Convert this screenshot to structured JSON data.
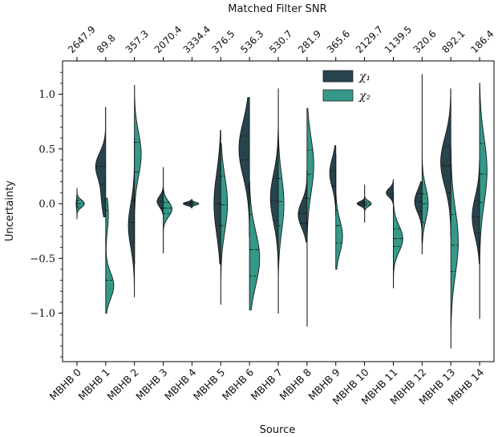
{
  "chart_data": {
    "type": "violin",
    "xlabel": "Source",
    "ylabel": "Uncertainty",
    "top_xlabel": "Matched Filter SNR",
    "ylim": [
      -1.45,
      1.3
    ],
    "yticks": [
      -1.0,
      -0.5,
      0.0,
      0.5,
      1.0
    ],
    "ytick_labels": [
      "−1.0",
      "−0.5",
      "0.0",
      "0.5",
      "1.0"
    ],
    "categories": [
      "MBHB 0",
      "MBHB 1",
      "MBHB 2",
      "MBHB 3",
      "MBHB 4",
      "MBHB 5",
      "MBHB 6",
      "MBHB 7",
      "MBHB 8",
      "MBHB 9",
      "MBHB 10",
      "MBHB 11",
      "MBHB 12",
      "MBHB 13",
      "MBHB 14"
    ],
    "snr": [
      "2647.9",
      "89.8",
      "357.3",
      "2070.4",
      "3334.4",
      "376.5",
      "536.3",
      "530.7",
      "281.9",
      "365.6",
      "2129.7",
      "1139.5",
      "320.6",
      "892.1",
      "186.4"
    ],
    "legend_position": "top-center",
    "colors": {
      "chi1": "#27444d",
      "chi2": "#35998a"
    },
    "series": [
      {
        "name": "χ₁",
        "violins": [
          {
            "min": -0.14,
            "max": 0.14,
            "q1": -0.03,
            "median": 0.0,
            "q3": 0.03,
            "peaks": [
              [
                0.0,
                0.035,
                0.06
              ]
            ]
          },
          {
            "min": -0.12,
            "max": 0.88,
            "q1": 0.03,
            "median": 0.18,
            "q3": 0.34,
            "peaks": [
              [
                0.35,
                0.12,
                0.7
              ],
              [
                0.05,
                0.15,
                0.3
              ]
            ]
          },
          {
            "min": -0.85,
            "max": 0.6,
            "q1": -0.35,
            "median": -0.17,
            "q3": 0.03,
            "peaks": [
              [
                -0.2,
                0.2,
                0.45
              ]
            ]
          },
          {
            "min": -0.1,
            "max": 0.15,
            "q1": -0.04,
            "median": 0.02,
            "q3": 0.06,
            "peaks": [
              [
                0.02,
                0.05,
                0.45
              ]
            ]
          },
          {
            "min": -0.04,
            "max": 0.04,
            "q1": -0.01,
            "median": 0.0,
            "q3": 0.01,
            "peaks": [
              [
                0.0,
                0.015,
                0.65
              ]
            ]
          },
          {
            "min": -0.55,
            "max": 0.67,
            "q1": -0.2,
            "median": 0.0,
            "q3": 0.25,
            "peaks": [
              [
                0.0,
                0.28,
                0.5
              ]
            ]
          },
          {
            "min": -0.3,
            "max": 0.97,
            "q1": 0.15,
            "median": 0.4,
            "q3": 0.62,
            "peaks": [
              [
                0.5,
                0.25,
                0.78
              ]
            ]
          },
          {
            "min": -0.6,
            "max": 0.67,
            "q1": -0.15,
            "median": 0.03,
            "q3": 0.23,
            "peaks": [
              [
                0.05,
                0.22,
                0.58
              ]
            ]
          },
          {
            "min": -0.35,
            "max": 0.3,
            "q1": -0.18,
            "median": -0.09,
            "q3": 0.05,
            "peaks": [
              [
                -0.1,
                0.12,
                0.65
              ]
            ]
          },
          {
            "min": -0.1,
            "max": 0.53,
            "q1": 0.05,
            "median": 0.16,
            "q3": 0.3,
            "peaks": [
              [
                0.28,
                0.13,
                0.45
              ]
            ]
          },
          {
            "min": -0.05,
            "max": 0.05,
            "q1": -0.015,
            "median": 0.0,
            "q3": 0.015,
            "peaks": [
              [
                0.0,
                0.02,
                0.55
              ]
            ]
          },
          {
            "min": 0.0,
            "max": 0.22,
            "q1": 0.06,
            "median": 0.09,
            "q3": 0.13,
            "peaks": [
              [
                0.1,
                0.04,
                0.52
              ]
            ]
          },
          {
            "min": -0.35,
            "max": 0.2,
            "q1": -0.07,
            "median": 0.02,
            "q3": 0.09,
            "peaks": [
              [
                0.02,
                0.1,
                0.55
              ]
            ]
          },
          {
            "min": -0.3,
            "max": 1.05,
            "q1": 0.1,
            "median": 0.35,
            "q3": 0.52,
            "peaks": [
              [
                0.38,
                0.22,
                0.75
              ]
            ]
          },
          {
            "min": -0.55,
            "max": 0.4,
            "q1": -0.27,
            "median": -0.12,
            "q3": 0.03,
            "peaks": [
              [
                -0.12,
                0.18,
                0.55
              ]
            ]
          }
        ]
      },
      {
        "name": "χ₂",
        "violins": [
          {
            "min": -0.12,
            "max": 0.12,
            "q1": -0.03,
            "median": 0.0,
            "q3": 0.03,
            "peaks": [
              [
                0.0,
                0.035,
                0.55
              ]
            ]
          },
          {
            "min": -1.0,
            "max": 0.05,
            "q1": -0.7,
            "median": -0.42,
            "q3": -0.06,
            "peaks": [
              [
                -0.75,
                0.12,
                0.6
              ],
              [
                -0.1,
                0.15,
                0.2
              ]
            ]
          },
          {
            "min": -0.55,
            "max": 1.08,
            "q1": 0.0,
            "median": 0.29,
            "q3": 0.56,
            "peaks": [
              [
                0.45,
                0.2,
                0.5
              ]
            ]
          },
          {
            "min": -0.45,
            "max": 0.33,
            "q1": -0.09,
            "median": -0.04,
            "q3": 0.01,
            "peaks": [
              [
                -0.05,
                0.07,
                0.65
              ]
            ]
          },
          {
            "min": -0.03,
            "max": 0.03,
            "q1": -0.01,
            "median": 0.0,
            "q3": 0.01,
            "peaks": [
              [
                0.0,
                0.012,
                0.5
              ]
            ]
          },
          {
            "min": -0.92,
            "max": 0.55,
            "q1": -0.2,
            "median": -0.01,
            "q3": 0.25,
            "peaks": [
              [
                0.0,
                0.25,
                0.5
              ]
            ]
          },
          {
            "min": -0.97,
            "max": 0.2,
            "q1": -0.66,
            "median": -0.42,
            "q3": -0.1,
            "peaks": [
              [
                -0.5,
                0.25,
                0.75
              ]
            ]
          },
          {
            "min": -1.0,
            "max": 1.05,
            "q1": -0.2,
            "median": 0.02,
            "q3": 0.23,
            "peaks": [
              [
                0.0,
                0.25,
                0.42
              ]
            ]
          },
          {
            "min": -1.12,
            "max": 0.87,
            "q1": 0.05,
            "median": 0.27,
            "q3": 0.49,
            "peaks": [
              [
                0.35,
                0.25,
                0.5
              ]
            ]
          },
          {
            "min": -0.6,
            "max": 0.45,
            "q1": -0.36,
            "median": -0.2,
            "q3": -0.06,
            "peaks": [
              [
                -0.3,
                0.15,
                0.5
              ]
            ]
          },
          {
            "min": -0.17,
            "max": 0.17,
            "q1": -0.015,
            "median": 0.0,
            "q3": 0.015,
            "peaks": [
              [
                0.0,
                0.025,
                0.5
              ]
            ]
          },
          {
            "min": -0.77,
            "max": 0.1,
            "q1": -0.39,
            "median": -0.32,
            "q3": -0.23,
            "peaks": [
              [
                -0.32,
                0.12,
                0.7
              ]
            ]
          },
          {
            "min": -0.46,
            "max": 1.18,
            "q1": -0.17,
            "median": 0.0,
            "q3": 0.09,
            "peaks": [
              [
                0.0,
                0.15,
                0.45
              ]
            ]
          },
          {
            "min": -1.32,
            "max": 0.5,
            "q1": -0.62,
            "median": -0.38,
            "q3": -0.1,
            "peaks": [
              [
                -0.35,
                0.3,
                0.55
              ]
            ]
          },
          {
            "min": -1.05,
            "max": 1.1,
            "q1": 0.01,
            "median": 0.27,
            "q3": 0.55,
            "peaks": [
              [
                0.3,
                0.3,
                0.55
              ]
            ]
          }
        ]
      }
    ]
  }
}
